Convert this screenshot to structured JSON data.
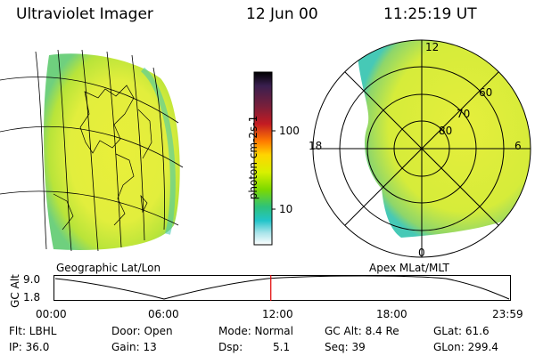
{
  "header": {
    "instrument": "Ultraviolet Imager",
    "date": "12 Jun 00",
    "time": "11:25:19 UT"
  },
  "geo_panel": {
    "caption": "Geographic Lat/Lon"
  },
  "polar_panel": {
    "caption": "Apex MLat/MLT",
    "mlt_labels": {
      "top": "12",
      "left": "18",
      "right": "6",
      "bottom": "0"
    },
    "lat_labels": [
      "60",
      "70",
      "80"
    ]
  },
  "colorbar": {
    "unit_label": "photon cm-2s-1",
    "ticks": [
      "100",
      "10"
    ],
    "colors": [
      "#000000",
      "#3a1f4f",
      "#7a1f3a",
      "#c31b22",
      "#ff7a00",
      "#ffd500",
      "#d8f000",
      "#7cd900",
      "#2ec27a",
      "#22c4c9",
      "#a8e4ea",
      "#ffffff"
    ]
  },
  "altitude_plot": {
    "ylabel": "GC Alt",
    "y_ticks": [
      "9.0",
      "1.8"
    ],
    "x_ticks": [
      "00:00",
      "06:00",
      "12:00",
      "18:00",
      "23:59"
    ],
    "current_time_fraction": 0.475,
    "marker_color": "#e00000"
  },
  "info": {
    "filter": "Flt: LBHL",
    "door": "Door: Open",
    "mode": "Mode: Normal",
    "gc_alt": "GC Alt: 8.4 Re",
    "glat": "GLat: 61.6",
    "ip": "IP: 36.0",
    "gain": "Gain: 13",
    "dsp": "Dsp:",
    "dsp_value": "5.1",
    "seq": "Seq: 39",
    "glon": "GLon: 299.4"
  }
}
